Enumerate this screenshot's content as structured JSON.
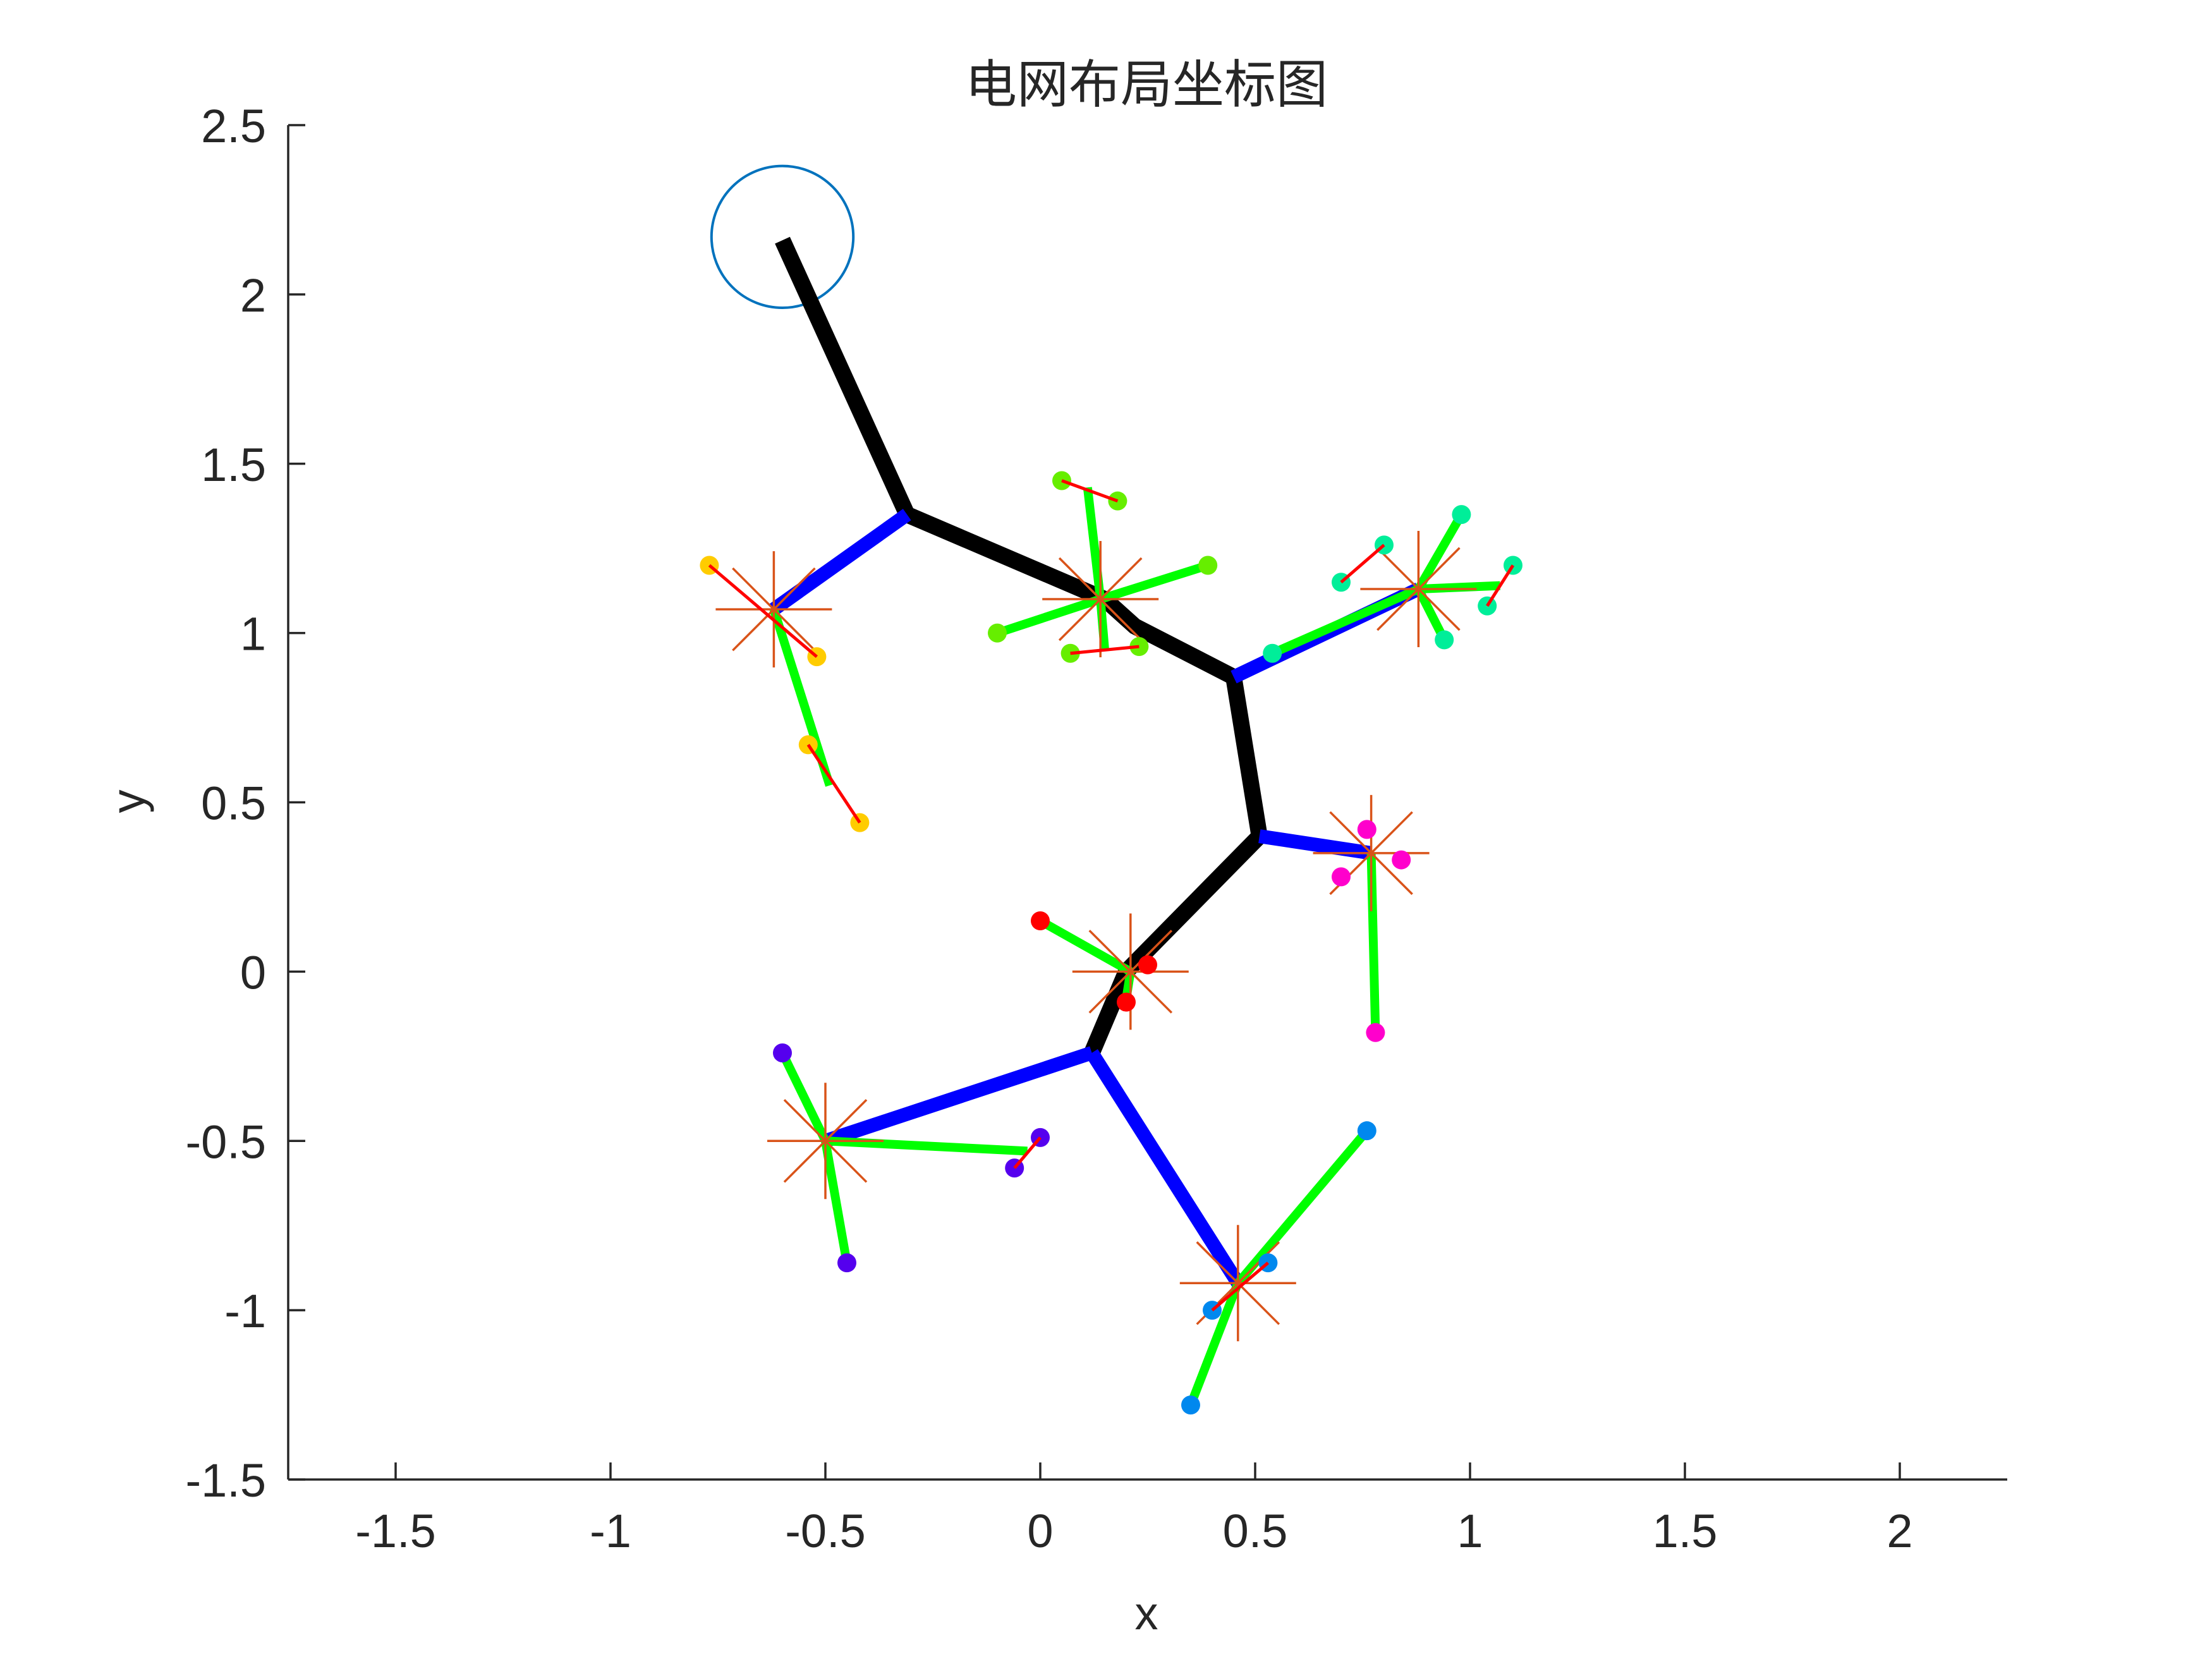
{
  "chart_data": {
    "type": "scatter",
    "title": "电网布局坐标图",
    "xlabel": "x",
    "ylabel": "y",
    "xlim": [
      -1.75,
      2.25
    ],
    "ylim": [
      -1.5,
      2.5
    ],
    "xticks": [
      "-1.5",
      "-1",
      "-0.5",
      "0",
      "0.5",
      "1",
      "1.5",
      "2"
    ],
    "xtick_values": [
      -1.5,
      -1,
      -0.5,
      0,
      0.5,
      1,
      1.5,
      2
    ],
    "yticks": [
      "2.5",
      "2",
      "1.5",
      "1",
      "0.5",
      "0",
      "-0.5",
      "-1",
      "-1.5"
    ],
    "ytick_values": [
      2.5,
      2,
      1.5,
      1,
      0.5,
      0,
      -0.5,
      -1,
      -1.5
    ],
    "grid": false,
    "legend": "none",
    "colors": {
      "axis": "#262626",
      "trunk": "#000000",
      "branch": "#0000ff",
      "feeder": "#00ff00",
      "pair_link": "#ff0000",
      "star_marker": "#d95319",
      "source_circle": "#0072bd"
    },
    "source": {
      "x": -0.6,
      "y": 2.17,
      "radius": 0.165
    },
    "trunk": [
      {
        "x": -0.6,
        "y": 2.16
      },
      {
        "x": -0.31,
        "y": 1.35
      },
      {
        "x": 0.15,
        "y": 1.1
      },
      {
        "x": 0.22,
        "y": 1.02
      },
      {
        "x": 0.45,
        "y": 0.87
      },
      {
        "x": 0.51,
        "y": 0.4
      },
      {
        "x": 0.2,
        "y": 0.0
      },
      {
        "x": 0.12,
        "y": -0.24
      }
    ],
    "branches": [
      {
        "from": {
          "x": -0.31,
          "y": 1.35
        },
        "to": {
          "x": -0.62,
          "y": 1.07
        }
      },
      {
        "from": {
          "x": 0.45,
          "y": 0.87
        },
        "to": {
          "x": 0.88,
          "y": 1.13
        }
      },
      {
        "from": {
          "x": 0.51,
          "y": 0.4
        },
        "to": {
          "x": 0.77,
          "y": 0.35
        }
      },
      {
        "from": {
          "x": 0.12,
          "y": -0.24
        },
        "to": {
          "x": -0.5,
          "y": -0.5
        }
      },
      {
        "from": {
          "x": 0.12,
          "y": -0.24
        },
        "to": {
          "x": 0.46,
          "y": -0.92
        }
      }
    ],
    "clusters": [
      {
        "color": "#ffcc00",
        "center": {
          "x": -0.62,
          "y": 1.07
        },
        "points": [
          {
            "x": -0.77,
            "y": 1.2
          },
          {
            "x": -0.52,
            "y": 0.93
          },
          {
            "x": -0.54,
            "y": 0.67
          },
          {
            "x": -0.42,
            "y": 0.44
          }
        ],
        "feeders": [
          {
            "x": -0.49,
            "y": 0.55
          }
        ],
        "pairs": [
          [
            0,
            1
          ],
          [
            2,
            3
          ]
        ]
      },
      {
        "color": "#66ee00",
        "center": {
          "x": 0.14,
          "y": 1.1
        },
        "points": [
          {
            "x": 0.05,
            "y": 1.45
          },
          {
            "x": 0.18,
            "y": 1.39
          },
          {
            "x": 0.39,
            "y": 1.2
          },
          {
            "x": -0.1,
            "y": 1.0
          },
          {
            "x": 0.07,
            "y": 0.94
          },
          {
            "x": 0.23,
            "y": 0.96
          }
        ],
        "feeders": [
          {
            "x": 0.11,
            "y": 1.43
          },
          {
            "x": 0.39,
            "y": 1.2
          },
          {
            "x": -0.1,
            "y": 1.0
          },
          {
            "x": 0.15,
            "y": 0.95
          }
        ],
        "pairs": [
          [
            0,
            1
          ],
          [
            4,
            5
          ]
        ]
      },
      {
        "color": "#00ee99",
        "center": {
          "x": 0.88,
          "y": 1.13
        },
        "points": [
          {
            "x": 0.98,
            "y": 1.35
          },
          {
            "x": 0.8,
            "y": 1.26
          },
          {
            "x": 0.7,
            "y": 1.15
          },
          {
            "x": 1.1,
            "y": 1.2
          },
          {
            "x": 1.04,
            "y": 1.08
          },
          {
            "x": 0.94,
            "y": 0.98
          },
          {
            "x": 0.54,
            "y": 0.94
          }
        ],
        "feeders": [
          {
            "x": 0.98,
            "y": 1.35
          },
          {
            "x": 0.94,
            "y": 0.98
          },
          {
            "x": 1.07,
            "y": 1.14
          },
          {
            "x": 0.54,
            "y": 0.94
          }
        ],
        "pairs": [
          [
            1,
            2
          ],
          [
            3,
            4
          ]
        ]
      },
      {
        "color": "#ff00cc",
        "center": {
          "x": 0.77,
          "y": 0.35
        },
        "points": [
          {
            "x": 0.76,
            "y": 0.42
          },
          {
            "x": 0.7,
            "y": 0.28
          },
          {
            "x": 0.84,
            "y": 0.33
          },
          {
            "x": 0.78,
            "y": -0.18
          }
        ],
        "feeders": [
          {
            "x": 0.78,
            "y": -0.18
          }
        ],
        "pairs": []
      },
      {
        "color": "#ff0000",
        "center": {
          "x": 0.21,
          "y": 0.0
        },
        "points": [
          {
            "x": 0.0,
            "y": 0.15
          },
          {
            "x": 0.25,
            "y": 0.02
          },
          {
            "x": 0.2,
            "y": -0.09
          }
        ],
        "feeders": [
          {
            "x": 0.0,
            "y": 0.15
          },
          {
            "x": 0.2,
            "y": -0.08
          }
        ],
        "pairs": []
      },
      {
        "color": "#5500ee",
        "center": {
          "x": -0.5,
          "y": -0.5
        },
        "points": [
          {
            "x": -0.6,
            "y": -0.24
          },
          {
            "x": 0.0,
            "y": -0.49
          },
          {
            "x": -0.06,
            "y": -0.58
          },
          {
            "x": -0.45,
            "y": -0.86
          }
        ],
        "feeders": [
          {
            "x": -0.6,
            "y": -0.24
          },
          {
            "x": -0.03,
            "y": -0.53
          },
          {
            "x": -0.45,
            "y": -0.86
          }
        ],
        "pairs": [
          [
            1,
            2
          ]
        ]
      },
      {
        "color": "#0088ee",
        "center": {
          "x": 0.46,
          "y": -0.92
        },
        "points": [
          {
            "x": 0.76,
            "y": -0.47
          },
          {
            "x": 0.53,
            "y": -0.86
          },
          {
            "x": 0.4,
            "y": -1.0
          },
          {
            "x": 0.35,
            "y": -1.28
          }
        ],
        "feeders": [
          {
            "x": 0.76,
            "y": -0.47
          },
          {
            "x": 0.35,
            "y": -1.28
          }
        ],
        "pairs": [
          [
            1,
            2
          ]
        ]
      }
    ]
  }
}
